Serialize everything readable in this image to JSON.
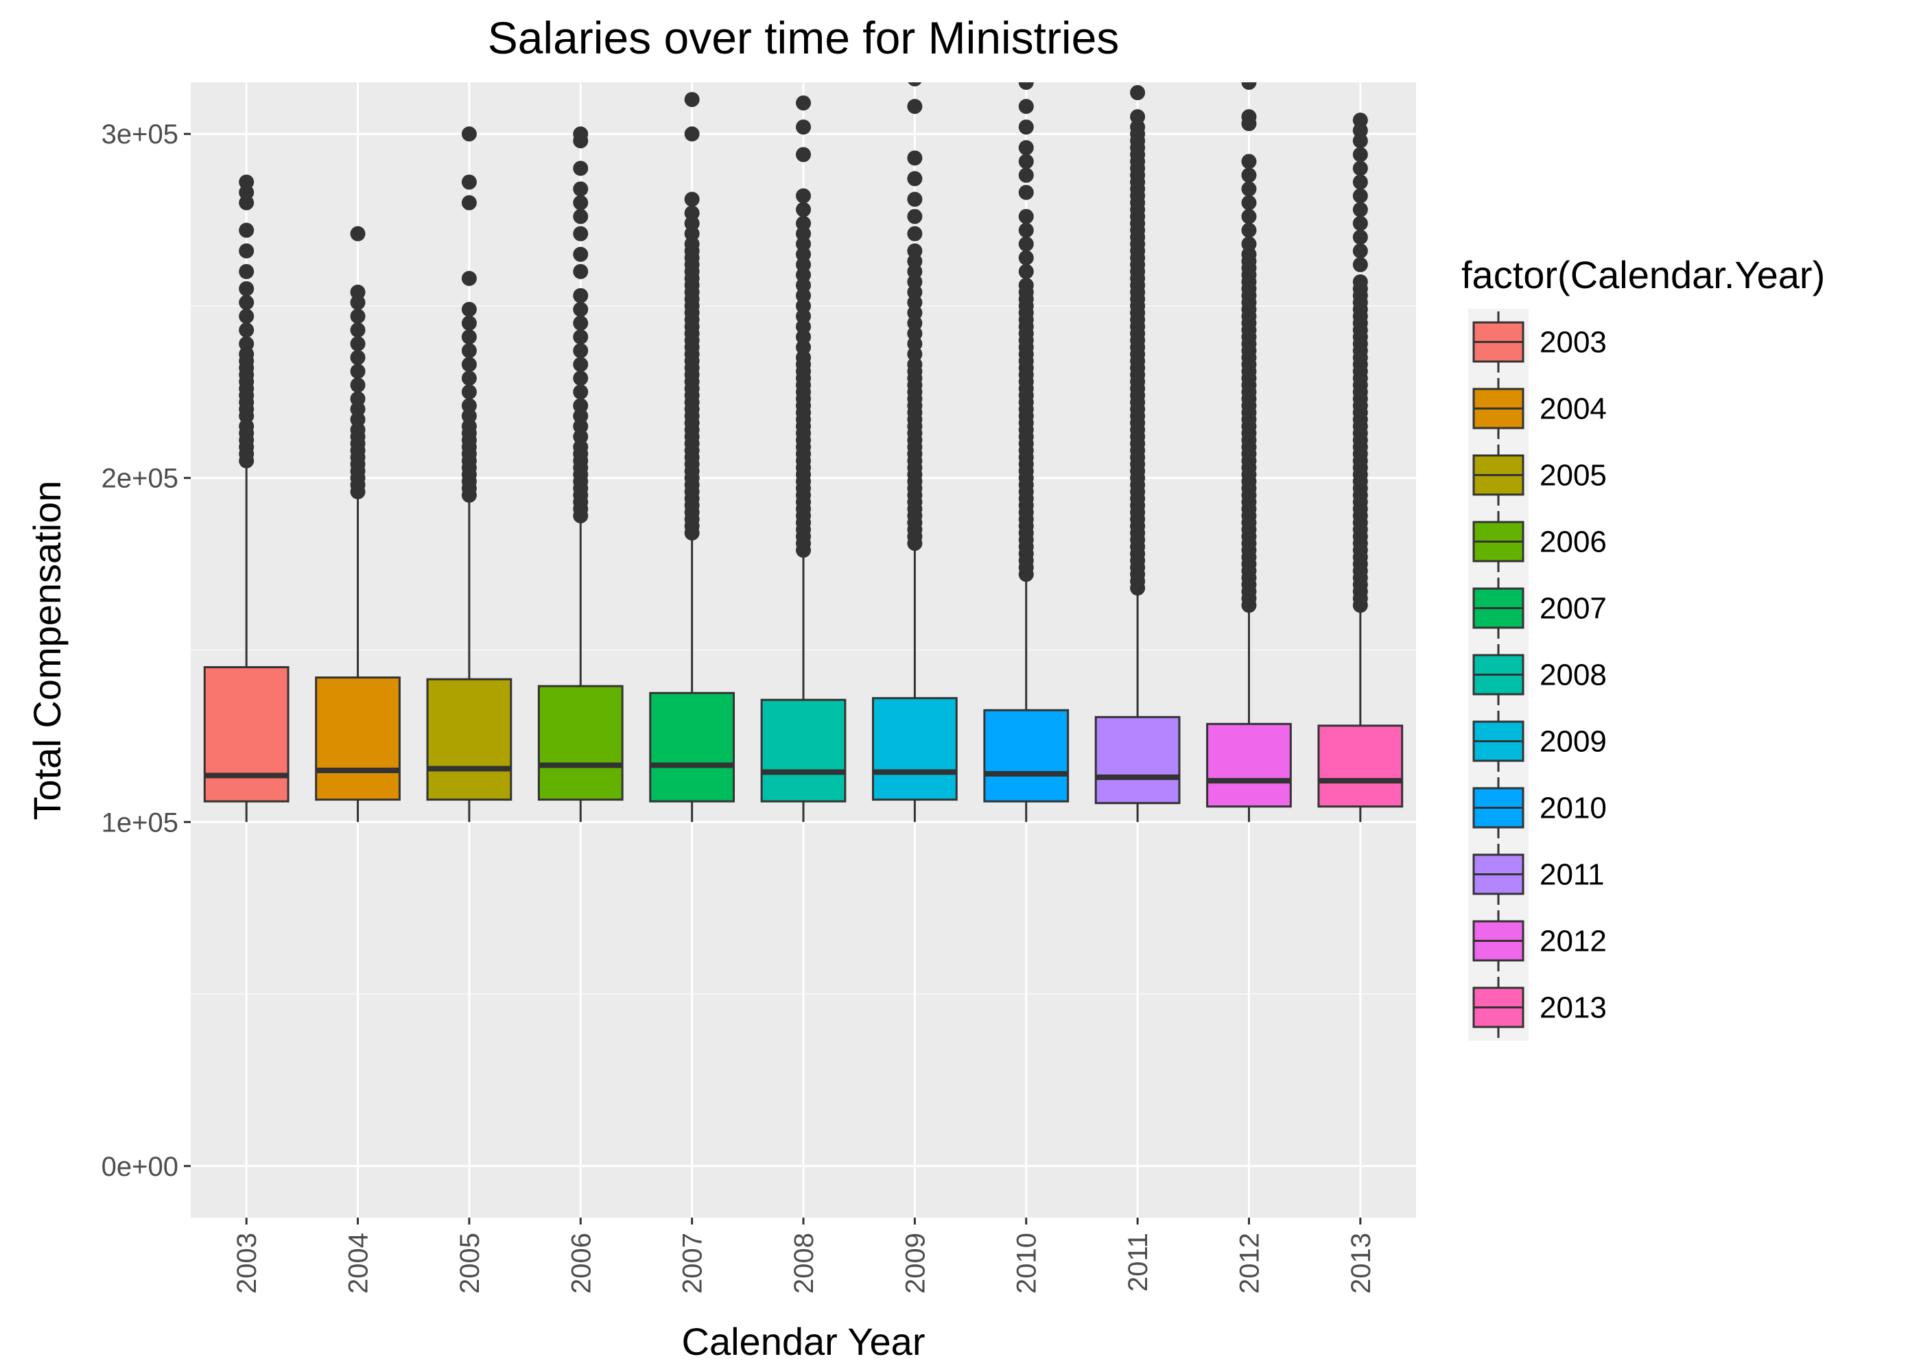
{
  "chart_data": {
    "type": "boxplot",
    "title": "Salaries over time for Ministries",
    "xlabel": "Calendar Year",
    "ylabel": "Total Compensation",
    "ylim": [
      -15000,
      315000
    ],
    "yticks": [
      0,
      100000,
      200000,
      300000
    ],
    "ytick_labels": [
      "0e+00",
      "1e+05",
      "2e+05",
      "3e+05"
    ],
    "grid": true,
    "legend_title": "factor(Calendar.Year)",
    "legend_position": "right",
    "categories": [
      "2003",
      "2004",
      "2005",
      "2006",
      "2007",
      "2008",
      "2009",
      "2010",
      "2011",
      "2012",
      "2013"
    ],
    "colors": [
      "#F8766D",
      "#DB8E00",
      "#AEA200",
      "#64B200",
      "#00BD5C",
      "#00C1A7",
      "#00BADE",
      "#00A6FF",
      "#B385FF",
      "#EF67EB",
      "#FF63B6"
    ],
    "boxes": [
      {
        "lower_whisker": 100000,
        "q1": 106000,
        "median": 113500,
        "q3": 145000,
        "upper_whisker": 203000,
        "outliers": [
          205000,
          207000,
          209000,
          211000,
          213000,
          215000,
          218000,
          220000,
          222000,
          224000,
          226000,
          228000,
          230000,
          232000,
          234000,
          236000,
          239000,
          243000,
          247000,
          251000,
          255000,
          260000,
          266000,
          272000,
          280000,
          283000,
          286000
        ]
      },
      {
        "lower_whisker": 100000,
        "q1": 106500,
        "median": 115000,
        "q3": 142000,
        "upper_whisker": 195000,
        "outliers": [
          196000,
          198000,
          200000,
          202000,
          204000,
          206000,
          208000,
          210000,
          212000,
          214000,
          217000,
          220000,
          223000,
          227000,
          231000,
          235000,
          239000,
          243000,
          247000,
          251000,
          254000,
          271000
        ]
      },
      {
        "lower_whisker": 100000,
        "q1": 106500,
        "median": 115500,
        "q3": 141500,
        "upper_whisker": 194000,
        "outliers": [
          195000,
          197000,
          199000,
          201000,
          203000,
          205000,
          207000,
          209000,
          211000,
          213000,
          215000,
          218000,
          221000,
          225000,
          229000,
          233000,
          237000,
          241000,
          245000,
          249000,
          258000,
          280000,
          286000,
          300000
        ]
      },
      {
        "lower_whisker": 100000,
        "q1": 106500,
        "median": 116500,
        "q3": 139500,
        "upper_whisker": 188000,
        "outliers": [
          189000,
          191000,
          193000,
          195000,
          197000,
          199000,
          201000,
          203000,
          205000,
          207000,
          209000,
          212000,
          215000,
          218000,
          221000,
          225000,
          229000,
          233000,
          237000,
          241000,
          245000,
          249000,
          253000,
          260000,
          265000,
          271000,
          276000,
          280000,
          284000,
          290000,
          298000,
          300000
        ]
      },
      {
        "lower_whisker": 100000,
        "q1": 106000,
        "median": 116500,
        "q3": 137500,
        "upper_whisker": 183000,
        "outliers": [
          184000,
          186000,
          188000,
          190000,
          192000,
          194000,
          196000,
          198000,
          200000,
          202000,
          204000,
          206000,
          208000,
          210000,
          212000,
          214000,
          216000,
          218000,
          220000,
          222000,
          224000,
          226000,
          228000,
          230000,
          232000,
          234000,
          236000,
          238000,
          240000,
          242000,
          244000,
          246000,
          248000,
          250000,
          252000,
          254000,
          256000,
          258000,
          260000,
          262000,
          264000,
          266000,
          268000,
          271000,
          274000,
          277000,
          281000,
          300000,
          310000
        ]
      },
      {
        "lower_whisker": 100000,
        "q1": 106000,
        "median": 114500,
        "q3": 135500,
        "upper_whisker": 178000,
        "outliers": [
          179000,
          181000,
          183000,
          185000,
          187000,
          189000,
          191000,
          193000,
          195000,
          197000,
          199000,
          201000,
          203000,
          205000,
          207000,
          209000,
          211000,
          213000,
          215000,
          217000,
          219000,
          221000,
          223000,
          225000,
          227000,
          229000,
          231000,
          233000,
          235000,
          238000,
          241000,
          244000,
          247000,
          250000,
          253000,
          256000,
          259000,
          262000,
          265000,
          268000,
          271000,
          274000,
          278000,
          282000,
          294000,
          302000,
          309000
        ]
      },
      {
        "lower_whisker": 100000,
        "q1": 106500,
        "median": 114500,
        "q3": 136000,
        "upper_whisker": 180000,
        "outliers": [
          181000,
          183000,
          185000,
          187000,
          189000,
          191000,
          193000,
          195000,
          197000,
          199000,
          201000,
          203000,
          205000,
          207000,
          209000,
          211000,
          213000,
          215000,
          217000,
          219000,
          221000,
          223000,
          225000,
          227000,
          229000,
          231000,
          233000,
          236000,
          239000,
          242000,
          245000,
          248000,
          251000,
          254000,
          257000,
          260000,
          263000,
          266000,
          271000,
          276000,
          281000,
          287000,
          293000,
          308000,
          316000
        ]
      },
      {
        "lower_whisker": 100000,
        "q1": 106000,
        "median": 114000,
        "q3": 132500,
        "upper_whisker": 171000,
        "outliers": [
          172000,
          174000,
          176000,
          178000,
          180000,
          182000,
          184000,
          186000,
          188000,
          190000,
          192000,
          194000,
          196000,
          198000,
          200000,
          202000,
          204000,
          206000,
          208000,
          210000,
          212000,
          214000,
          216000,
          218000,
          220000,
          222000,
          224000,
          226000,
          228000,
          230000,
          232000,
          234000,
          236000,
          238000,
          240000,
          242000,
          244000,
          246000,
          248000,
          250000,
          252000,
          254000,
          256000,
          260000,
          264000,
          268000,
          272000,
          276000,
          283000,
          288000,
          292000,
          296000,
          302000,
          308000,
          315000
        ]
      },
      {
        "lower_whisker": 100000,
        "q1": 105500,
        "median": 113000,
        "q3": 130500,
        "upper_whisker": 167000,
        "outliers": [
          168000,
          170000,
          172000,
          174000,
          176000,
          178000,
          180000,
          182000,
          184000,
          186000,
          188000,
          190000,
          192000,
          194000,
          196000,
          198000,
          200000,
          202000,
          204000,
          206000,
          208000,
          210000,
          212000,
          214000,
          216000,
          218000,
          220000,
          222000,
          224000,
          226000,
          228000,
          230000,
          232000,
          234000,
          236000,
          238000,
          240000,
          242000,
          244000,
          246000,
          248000,
          250000,
          252000,
          254000,
          256000,
          258000,
          260000,
          262000,
          264000,
          266000,
          268000,
          270000,
          272000,
          274000,
          276000,
          278000,
          280000,
          282000,
          284000,
          286000,
          288000,
          290000,
          292000,
          294000,
          296000,
          298000,
          300000,
          302000,
          305000,
          312000
        ]
      },
      {
        "lower_whisker": 100000,
        "q1": 104500,
        "median": 112000,
        "q3": 128500,
        "upper_whisker": 162000,
        "outliers": [
          163000,
          165000,
          167000,
          169000,
          171000,
          173000,
          175000,
          177000,
          179000,
          181000,
          183000,
          185000,
          187000,
          189000,
          191000,
          193000,
          195000,
          197000,
          199000,
          201000,
          203000,
          205000,
          207000,
          209000,
          211000,
          213000,
          215000,
          217000,
          219000,
          221000,
          223000,
          225000,
          227000,
          229000,
          231000,
          233000,
          235000,
          237000,
          239000,
          241000,
          243000,
          245000,
          247000,
          249000,
          251000,
          253000,
          255000,
          257000,
          259000,
          261000,
          263000,
          265000,
          268000,
          272000,
          276000,
          280000,
          284000,
          288000,
          292000,
          303000,
          305000,
          315000
        ]
      },
      {
        "lower_whisker": 100000,
        "q1": 104500,
        "median": 112000,
        "q3": 128000,
        "upper_whisker": 162000,
        "outliers": [
          163000,
          165000,
          167000,
          169000,
          171000,
          173000,
          175000,
          177000,
          179000,
          181000,
          183000,
          185000,
          187000,
          189000,
          191000,
          193000,
          195000,
          197000,
          199000,
          201000,
          203000,
          205000,
          207000,
          209000,
          211000,
          213000,
          215000,
          217000,
          219000,
          221000,
          223000,
          225000,
          227000,
          229000,
          231000,
          233000,
          235000,
          237000,
          239000,
          241000,
          243000,
          245000,
          247000,
          249000,
          251000,
          253000,
          255000,
          257000,
          262000,
          266000,
          270000,
          274000,
          278000,
          282000,
          286000,
          290000,
          294000,
          298000,
          301000,
          304000
        ]
      }
    ]
  }
}
